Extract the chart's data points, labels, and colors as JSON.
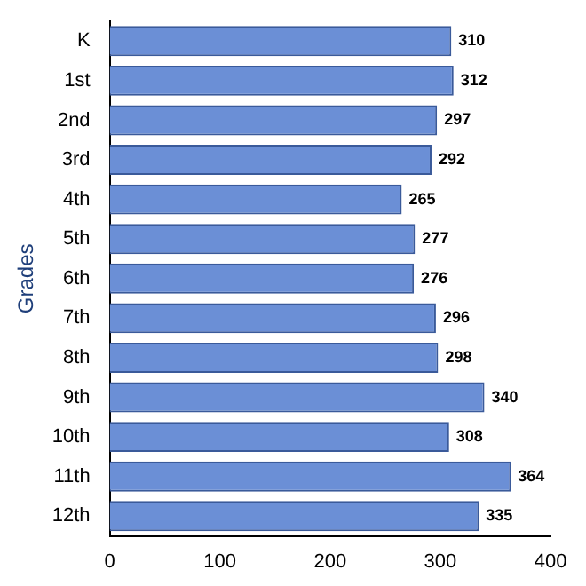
{
  "chart_data": {
    "type": "bar",
    "orientation": "horizontal",
    "ylabel": "Grades",
    "categories": [
      "K",
      "1st",
      "2nd",
      "3rd",
      "4th",
      "5th",
      "6th",
      "7th",
      "8th",
      "9th",
      "10th",
      "11th",
      "12th"
    ],
    "values": [
      310,
      312,
      297,
      292,
      265,
      277,
      276,
      296,
      298,
      340,
      308,
      364,
      335
    ],
    "color": "#6b8fd6",
    "xlim": [
      0,
      400
    ],
    "xticks": [
      0,
      100,
      200,
      300,
      400
    ],
    "grid": false,
    "legend": false,
    "data_labels": true
  }
}
